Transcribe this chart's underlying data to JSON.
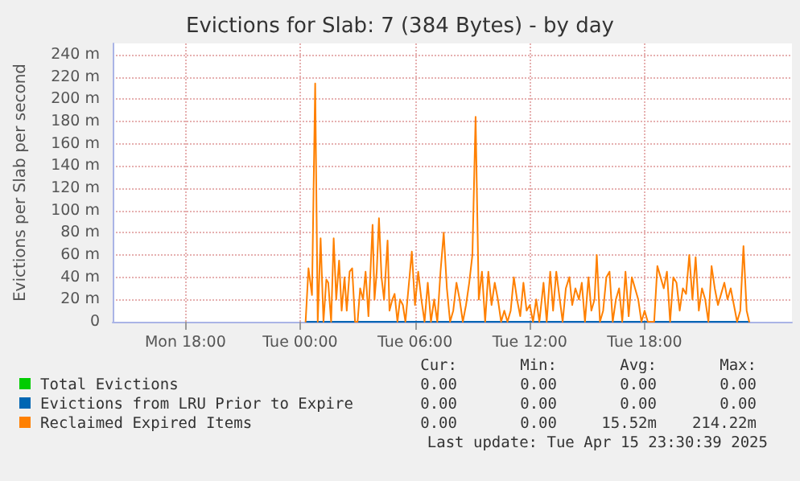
{
  "chart_data": {
    "type": "line",
    "title": "Evictions for Slab: 7 (384 Bytes) - by day",
    "ylabel": "Evictions per Slab per second",
    "xlim": [
      "2025-04-14T14:12",
      "2025-04-16T01:42"
    ],
    "xticks": [
      {
        "value": "2025-04-14T18:00",
        "label": "Mon 18:00"
      },
      {
        "value": "2025-04-15T00:00",
        "label": "Tue 00:00"
      },
      {
        "value": "2025-04-15T06:00",
        "label": "Tue 06:00"
      },
      {
        "value": "2025-04-15T12:00",
        "label": "Tue 12:00"
      },
      {
        "value": "2025-04-15T18:00",
        "label": "Tue 18:00"
      }
    ],
    "ylim": [
      0,
      250
    ],
    "yticks": [
      0,
      {
        "value": 20,
        "label": "20 m"
      },
      {
        "value": 40,
        "label": "40 m"
      },
      {
        "value": 60,
        "label": "60 m"
      },
      {
        "value": 80,
        "label": "80 m"
      },
      {
        "value": 100,
        "label": "100 m"
      },
      {
        "value": 120,
        "label": "120 m"
      },
      {
        "value": 140,
        "label": "140 m"
      },
      {
        "value": 160,
        "label": "160 m"
      },
      {
        "value": 180,
        "label": "180 m"
      },
      {
        "value": 200,
        "label": "200 m"
      },
      {
        "value": 220,
        "label": "220 m"
      },
      {
        "value": 240,
        "label": "240 m"
      }
    ],
    "grid": true,
    "legend": "bottom",
    "line_style": "solid",
    "series": [
      {
        "name": "Total Evictions",
        "color": "#00cc00"
      },
      {
        "name": "Evictions from LRU Prior to Expire",
        "color": "#0066b3",
        "x": [
          "2025-04-15T00:17",
          "2025-04-15T23:28"
        ],
        "values": [
          0,
          0
        ]
      },
      {
        "name": "Reclaimed Expired Items",
        "color": "#ff8000",
        "x": [
          "2025-04-15T00:17",
          "2025-04-15T00:26",
          "2025-04-15T00:37",
          "2025-04-15T00:47",
          "2025-04-15T00:55",
          "2025-04-15T01:04",
          "2025-04-15T01:13",
          "2025-04-15T01:22",
          "2025-04-15T01:28",
          "2025-04-15T01:37",
          "2025-04-15T01:45",
          "2025-04-15T01:53",
          "2025-04-15T02:02",
          "2025-04-15T02:10",
          "2025-04-15T02:19",
          "2025-04-15T02:26",
          "2025-04-15T02:35",
          "2025-04-15T02:43",
          "2025-04-15T02:52",
          "2025-04-15T03:00",
          "2025-04-15T03:08",
          "2025-04-15T03:17",
          "2025-04-15T03:25",
          "2025-04-15T03:34",
          "2025-04-15T03:47",
          "2025-04-15T03:53",
          "2025-04-15T04:00",
          "2025-04-15T04:07",
          "2025-04-15T04:15",
          "2025-04-15T04:23",
          "2025-04-15T04:34",
          "2025-04-15T04:40",
          "2025-04-15T04:49",
          "2025-04-15T04:56",
          "2025-04-15T05:05",
          "2025-04-15T05:13",
          "2025-04-15T05:22",
          "2025-04-15T05:30",
          "2025-04-15T05:50",
          "2025-04-15T06:00",
          "2025-04-15T06:10",
          "2025-04-15T06:20",
          "2025-04-15T06:30",
          "2025-04-15T06:40",
          "2025-04-15T06:50",
          "2025-04-15T07:00",
          "2025-04-15T07:10",
          "2025-04-15T07:20",
          "2025-04-15T07:30",
          "2025-04-15T07:40",
          "2025-04-15T07:50",
          "2025-04-15T08:00",
          "2025-04-15T08:10",
          "2025-04-15T08:20",
          "2025-04-15T08:30",
          "2025-04-15T08:40",
          "2025-04-15T08:50",
          "2025-04-15T09:00",
          "2025-04-15T09:10",
          "2025-04-15T09:20",
          "2025-04-15T09:30",
          "2025-04-15T09:40",
          "2025-04-15T09:50",
          "2025-04-15T10:00",
          "2025-04-15T10:10",
          "2025-04-15T10:20",
          "2025-04-15T10:30",
          "2025-04-15T10:40",
          "2025-04-15T10:50",
          "2025-04-15T11:00",
          "2025-04-15T11:10",
          "2025-04-15T11:20",
          "2025-04-15T11:30",
          "2025-04-15T11:40",
          "2025-04-15T11:50",
          "2025-04-15T12:00",
          "2025-04-15T12:10",
          "2025-04-15T12:20",
          "2025-04-15T12:30",
          "2025-04-15T12:43",
          "2025-04-15T12:53",
          "2025-04-15T13:04",
          "2025-04-15T13:13",
          "2025-04-15T13:23",
          "2025-04-15T13:34",
          "2025-04-15T13:43",
          "2025-04-15T13:53",
          "2025-04-15T14:04",
          "2025-04-15T14:13",
          "2025-04-15T14:23",
          "2025-04-15T14:34",
          "2025-04-15T14:43",
          "2025-04-15T14:53",
          "2025-04-15T15:04",
          "2025-04-15T15:13",
          "2025-04-15T15:23",
          "2025-04-15T15:30",
          "2025-04-15T15:40",
          "2025-04-15T15:50",
          "2025-04-15T16:00",
          "2025-04-15T16:10",
          "2025-04-15T16:20",
          "2025-04-15T16:30",
          "2025-04-15T16:40",
          "2025-04-15T16:50",
          "2025-04-15T17:00",
          "2025-04-15T17:10",
          "2025-04-15T17:20",
          "2025-04-15T17:30",
          "2025-04-15T17:40",
          "2025-04-15T17:50",
          "2025-04-15T18:00",
          "2025-04-15T18:10",
          "2025-04-15T18:20",
          "2025-04-15T18:30",
          "2025-04-15T18:40",
          "2025-04-15T18:50",
          "2025-04-15T19:00",
          "2025-04-15T19:10",
          "2025-04-15T19:20",
          "2025-04-15T19:30",
          "2025-04-15T19:40",
          "2025-04-15T19:50",
          "2025-04-15T20:00",
          "2025-04-15T20:10",
          "2025-04-15T20:20",
          "2025-04-15T20:30",
          "2025-04-15T20:40",
          "2025-04-15T20:50",
          "2025-04-15T21:00",
          "2025-04-15T21:10",
          "2025-04-15T21:20",
          "2025-04-15T21:30",
          "2025-04-15T21:40",
          "2025-04-15T21:50",
          "2025-04-15T22:00",
          "2025-04-15T22:10",
          "2025-04-15T22:20",
          "2025-04-15T22:30",
          "2025-04-15T22:40",
          "2025-04-15T22:50",
          "2025-04-15T23:00",
          "2025-04-15T23:10",
          "2025-04-15T23:20",
          "2025-04-15T23:28"
        ],
        "values": [
          0,
          48,
          24,
          214,
          0,
          75,
          0,
          38,
          35,
          0,
          75,
          20,
          55,
          10,
          40,
          10,
          45,
          48,
          0,
          0,
          30,
          20,
          45,
          5,
          87,
          20,
          45,
          93,
          40,
          20,
          73,
          10,
          20,
          25,
          0,
          20,
          15,
          0,
          63,
          15,
          45,
          20,
          0,
          35,
          0,
          20,
          0,
          45,
          80,
          30,
          0,
          10,
          35,
          20,
          0,
          15,
          35,
          60,
          184,
          20,
          45,
          0,
          45,
          15,
          35,
          20,
          0,
          10,
          0,
          10,
          40,
          20,
          5,
          35,
          10,
          15,
          0,
          20,
          0,
          35,
          0,
          45,
          10,
          45,
          20,
          0,
          30,
          40,
          15,
          30,
          20,
          35,
          0,
          40,
          10,
          20,
          60,
          0,
          10,
          40,
          45,
          0,
          20,
          30,
          0,
          45,
          5,
          40,
          30,
          20,
          0,
          10,
          0,
          0,
          0,
          50,
          40,
          30,
          45,
          0,
          40,
          35,
          10,
          30,
          25,
          60,
          20,
          58,
          10,
          30,
          20,
          0,
          50,
          30,
          15,
          25,
          35,
          20,
          30,
          15,
          0,
          10,
          68,
          10,
          0
        ]
      }
    ],
    "annotations": [
      "Cur:",
      "Min:",
      "Avg:",
      "Max:",
      "0.00",
      "0.00",
      "0.00",
      "0.00",
      "0.00",
      "0.00",
      "0.00",
      "0.00",
      "0.00",
      "0.00",
      "15.52m",
      "214.22m",
      "Last update: Tue Apr 15 23:30:39 2025"
    ]
  }
}
